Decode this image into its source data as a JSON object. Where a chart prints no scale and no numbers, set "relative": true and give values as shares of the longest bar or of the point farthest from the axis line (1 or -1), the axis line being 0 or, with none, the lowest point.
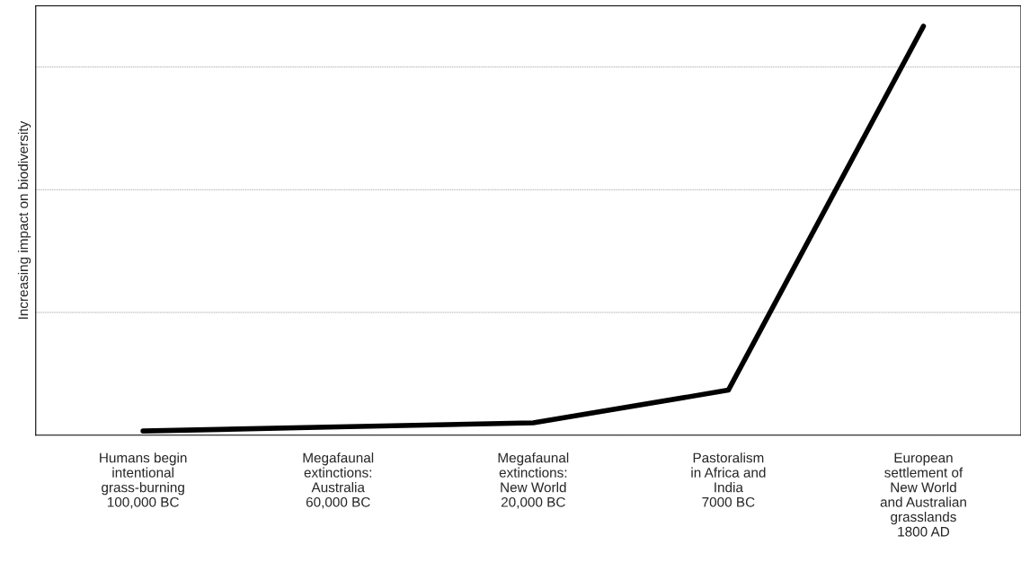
{
  "chart_data": {
    "type": "line",
    "relative": true,
    "ylabel": "Increasing impact on biodiversity",
    "categories": [
      "Humans begin\nintentional\ngrass-burning\n100,000 BC",
      "Megafaunal\nextinctions:\nAustralia\n60,000 BC",
      "Megafaunal\nextinctions:\nNew World\n20,000 BC",
      "Pastoralism\nin Africa and\nIndia\n7000 BC",
      "European\nsettlement of\nNew World\nand Australian\ngrasslands\n1800 AD"
    ],
    "series": [
      {
        "color": "#000000",
        "values": [
          0.01,
          0.02,
          0.03,
          0.11,
          1
        ]
      }
    ],
    "grid": "y",
    "marker": "none",
    "line_style": "solid"
  }
}
